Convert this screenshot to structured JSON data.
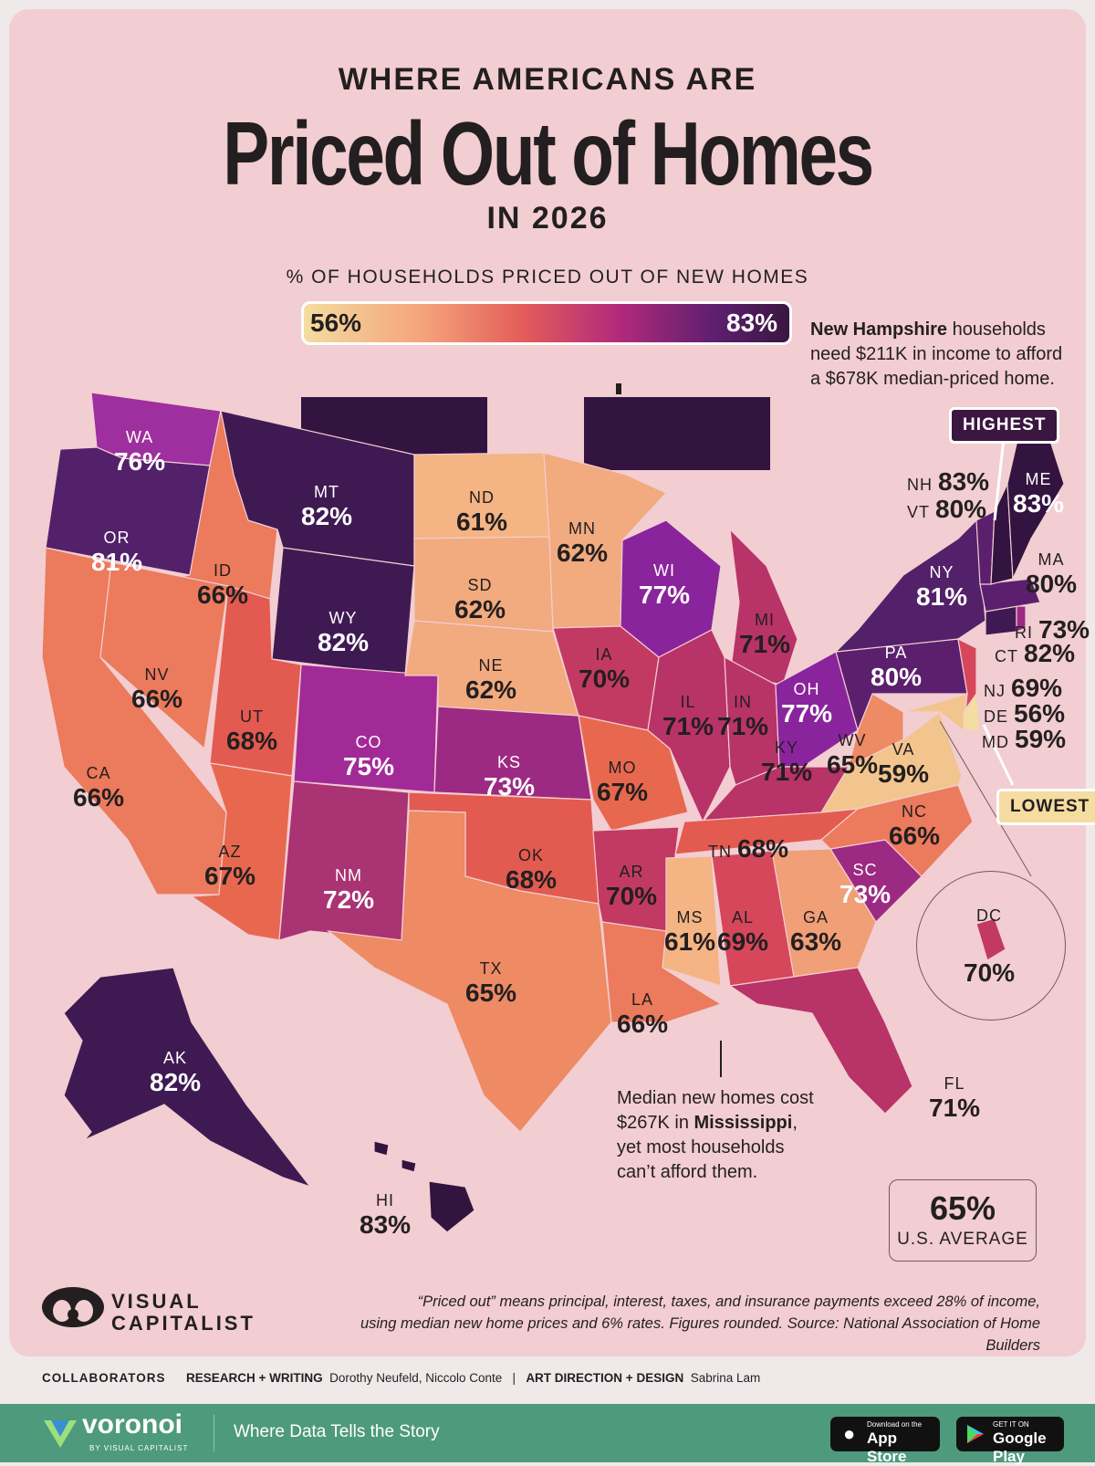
{
  "header": {
    "kicker": "WHERE AMERICANS ARE",
    "title": "Priced Out of Homes",
    "year": "IN 2026",
    "scale_title": "% OF HOUSEHOLDS PRICED OUT OF NEW HOMES"
  },
  "legend": {
    "min": "56%",
    "max": "83%"
  },
  "callouts": {
    "nh_bold": "New Hampshire",
    "nh_rest_1": " households",
    "nh_line_2": "need $211K in income to afford",
    "nh_line_3": "a $678K median-priced home.",
    "highest": "HIGHEST",
    "lowest": "LOWEST",
    "ms_line_1": "Median new homes cost",
    "ms_line_2a": "$267K in ",
    "ms_bold": "Mississippi",
    "ms_line_2b": ",",
    "ms_line_3": "yet most households",
    "ms_line_4": "can’t afford them."
  },
  "states": {
    "WA": "76%",
    "OR": "81%",
    "CA": "66%",
    "ID": "66%",
    "NV": "66%",
    "MT": "82%",
    "WY": "82%",
    "UT": "68%",
    "AZ": "67%",
    "CO": "75%",
    "NM": "72%",
    "ND": "61%",
    "SD": "62%",
    "NE": "62%",
    "KS": "73%",
    "OK": "68%",
    "TX": "65%",
    "MN": "62%",
    "IA": "70%",
    "MO": "67%",
    "AR": "70%",
    "LA": "66%",
    "WI": "77%",
    "IL": "71%",
    "MI": "71%",
    "IN": "71%",
    "OH": "77%",
    "KY": "71%",
    "TN": "68%",
    "MS": "61%",
    "AL": "69%",
    "GA": "63%",
    "FL": "71%",
    "SC": "73%",
    "NC": "66%",
    "VA": "59%",
    "WV": "65%",
    "PA": "80%",
    "NY": "81%",
    "NJ": "69%",
    "DE": "56%",
    "MD": "59%",
    "CT": "82%",
    "RI": "73%",
    "MA": "80%",
    "VT": "80%",
    "NH": "83%",
    "ME": "83%",
    "AK": "82%",
    "HI": "83%",
    "DC": "70%"
  },
  "average": {
    "value": "65%",
    "label": "U.S. AVERAGE"
  },
  "footer": {
    "footnote_1": "“Priced out” means principal, interest, taxes, and insurance payments exceed 28% of income,",
    "footnote_2": "using median new home prices and 6% rates. Figures rounded. Source: National Association of Home Builders",
    "brand_1": "VISUAL",
    "brand_2": "CAPITALIST",
    "collab_label": "COLLABORATORS",
    "research_label": "RESEARCH + WRITING",
    "research_names": "Dorothy Neufeld, Niccolo Conte",
    "sep": "|",
    "design_label": "ART DIRECTION + DESIGN",
    "design_names": "Sabrina Lam",
    "voronoi": "voronoi",
    "voronoi_sub": "BY VISUAL CAPITALIST",
    "tagline": "Where Data Tells the Story",
    "appstore_small": "Download on the",
    "appstore": "App Store",
    "gplay_small": "GET IT ON",
    "gplay": "Google Play"
  },
  "colors": {
    "v56": "#f5dca0",
    "v59": "#f3c58e",
    "v61": "#f4b483",
    "v62": "#f2aa7f",
    "v63": "#f09f77",
    "v65": "#ee8a64",
    "v66": "#ec7a5c",
    "v67": "#e8684f",
    "v68": "#e35a50",
    "v69": "#d6475b",
    "v70": "#c23a62",
    "v71": "#b83367",
    "v72": "#a93373",
    "v73": "#9c2a82",
    "v75": "#a22a97",
    "v76": "#9e2f9e",
    "v77": "#8a249c",
    "v80": "#5c1f6e",
    "v81": "#53206a",
    "v82": "#3f1a52",
    "v83": "#331340"
  }
}
